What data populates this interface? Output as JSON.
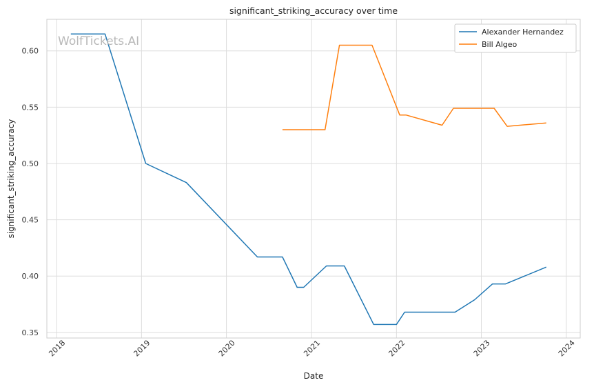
{
  "chart_data": {
    "type": "line",
    "title": "significant_striking_accuracy over time",
    "xlabel": "Date",
    "ylabel": "significant_striking_accuracy",
    "watermark": "WolfTickets.AI",
    "x_ticks": [
      "2018",
      "2019",
      "2020",
      "2021",
      "2022",
      "2023",
      "2024"
    ],
    "y_ticks": [
      "0.35",
      "0.40",
      "0.45",
      "0.50",
      "0.55",
      "0.60"
    ],
    "xlim": [
      "2017-11-20",
      "2024-03-01"
    ],
    "ylim": [
      0.345,
      0.628
    ],
    "grid": true,
    "legend_position": "top-right",
    "series": [
      {
        "name": "Alexander Hernandez",
        "color": "#1f77b4",
        "points": [
          [
            "2018-03-03",
            0.615
          ],
          [
            "2018-07-28",
            0.615
          ],
          [
            "2019-01-19",
            0.5
          ],
          [
            "2019-07-13",
            0.483
          ],
          [
            "2020-05-13",
            0.417
          ],
          [
            "2020-08-29",
            0.417
          ],
          [
            "2020-10-31",
            0.39
          ],
          [
            "2020-11-28",
            0.39
          ],
          [
            "2021-03-06",
            0.409
          ],
          [
            "2021-05-22",
            0.409
          ],
          [
            "2021-09-25",
            0.357
          ],
          [
            "2022-01-01",
            0.357
          ],
          [
            "2022-02-05",
            0.368
          ],
          [
            "2022-09-10",
            0.368
          ],
          [
            "2022-12-03",
            0.379
          ],
          [
            "2023-02-18",
            0.393
          ],
          [
            "2023-04-15",
            0.393
          ],
          [
            "2023-10-07",
            0.408
          ]
        ]
      },
      {
        "name": "Bill Algeo",
        "color": "#ff7f0e",
        "points": [
          [
            "2020-08-29",
            0.53
          ],
          [
            "2021-02-28",
            0.53
          ],
          [
            "2021-05-01",
            0.605
          ],
          [
            "2021-09-18",
            0.605
          ],
          [
            "2022-01-15",
            0.543
          ],
          [
            "2022-02-12",
            0.543
          ],
          [
            "2022-07-16",
            0.534
          ],
          [
            "2022-09-03",
            0.549
          ],
          [
            "2023-02-25",
            0.549
          ],
          [
            "2023-04-22",
            0.533
          ],
          [
            "2023-10-07",
            0.536
          ]
        ]
      }
    ]
  }
}
